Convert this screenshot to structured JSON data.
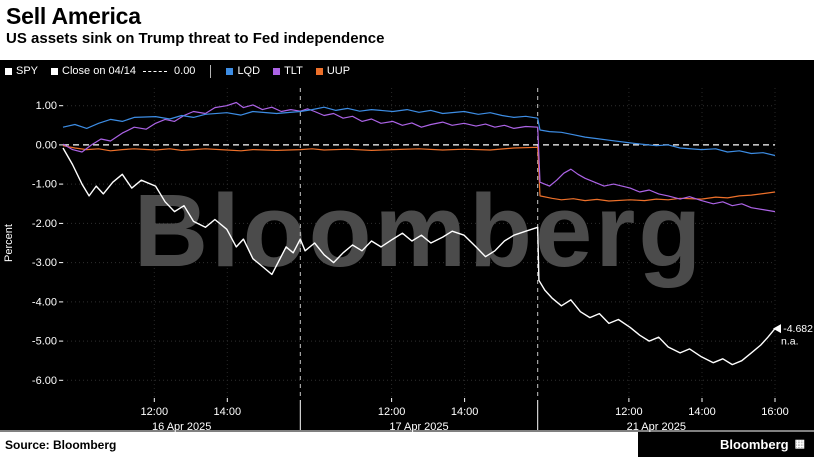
{
  "header": {
    "title": "Sell America",
    "subtitle": "US assets sink on Trump threat to Fed independence"
  },
  "legend": {
    "items": [
      {
        "label": "SPY",
        "color": "#FFFFFF"
      },
      {
        "label": "Close on 04/14",
        "color": "#FFFFFF",
        "dash_sample": true,
        "dash_value": "0.00"
      },
      {
        "label": "LQD",
        "color": "#3D8DE4",
        "divider_before": true
      },
      {
        "label": "TLT",
        "color": "#AC63E6"
      },
      {
        "label": "UUP",
        "color": "#ED702A"
      }
    ]
  },
  "chart_data": {
    "type": "line",
    "title": "Sell America",
    "subtitle": "US assets sink on Trump threat to Fed independence",
    "ylabel": "Percent",
    "ylim": [
      -6.45,
      1.45
    ],
    "x_domain": [
      0,
      3
    ],
    "yticks": [
      1.0,
      0.0,
      -1.0,
      -2.0,
      -3.0,
      -4.0,
      -5.0,
      -6.0
    ],
    "baseline": {
      "label": "Close on 04/14",
      "value": 0.0
    },
    "grid": true,
    "legend_position": "top",
    "watermark": "Bloomberg",
    "xticks": [
      {
        "t": 0.3846,
        "label": "12:00"
      },
      {
        "t": 0.6923,
        "label": "14:00"
      },
      {
        "t": 1.3846,
        "label": "12:00"
      },
      {
        "t": 1.6923,
        "label": "14:00"
      },
      {
        "t": 2.3846,
        "label": "12:00"
      },
      {
        "t": 2.6923,
        "label": "14:00"
      },
      {
        "t": 3.0,
        "label": "16:00"
      }
    ],
    "sessions": [
      {
        "label": "16 Apr 2025",
        "start": 0,
        "end": 1
      },
      {
        "label": "17 Apr 2025",
        "start": 1,
        "end": 2
      },
      {
        "label": "21 Apr 2025",
        "start": 2,
        "end": 3
      }
    ],
    "end_annotation": {
      "series": "SPY",
      "value_label": "-4.682",
      "sub_label": "n.a."
    },
    "series": [
      {
        "name": "SPY",
        "color": "#FFFFFF",
        "points": [
          [
            0,
            -0.08
          ],
          [
            0.04,
            -0.5
          ],
          [
            0.08,
            -1.0
          ],
          [
            0.11,
            -1.3
          ],
          [
            0.14,
            -1.05
          ],
          [
            0.17,
            -1.25
          ],
          [
            0.21,
            -0.95
          ],
          [
            0.25,
            -0.75
          ],
          [
            0.29,
            -1.1
          ],
          [
            0.33,
            -0.9
          ],
          [
            0.39,
            -1.05
          ],
          [
            0.43,
            -1.45
          ],
          [
            0.47,
            -1.7
          ],
          [
            0.51,
            -1.55
          ],
          [
            0.55,
            -1.95
          ],
          [
            0.6,
            -2.1
          ],
          [
            0.64,
            -1.9
          ],
          [
            0.69,
            -2.15
          ],
          [
            0.73,
            -2.6
          ],
          [
            0.76,
            -2.4
          ],
          [
            0.8,
            -2.9
          ],
          [
            0.84,
            -3.1
          ],
          [
            0.88,
            -3.3
          ],
          [
            0.91,
            -2.95
          ],
          [
            0.94,
            -2.6
          ],
          [
            0.97,
            -2.75
          ],
          [
            1,
            -2.4
          ],
          [
            1.02,
            -2.7
          ],
          [
            1.06,
            -2.5
          ],
          [
            1.1,
            -2.8
          ],
          [
            1.14,
            -3.0
          ],
          [
            1.18,
            -2.75
          ],
          [
            1.22,
            -2.55
          ],
          [
            1.26,
            -2.7
          ],
          [
            1.3,
            -2.45
          ],
          [
            1.34,
            -2.6
          ],
          [
            1.39,
            -2.4
          ],
          [
            1.43,
            -2.25
          ],
          [
            1.47,
            -2.45
          ],
          [
            1.51,
            -2.3
          ],
          [
            1.55,
            -2.5
          ],
          [
            1.6,
            -2.35
          ],
          [
            1.64,
            -2.2
          ],
          [
            1.69,
            -2.3
          ],
          [
            1.74,
            -2.6
          ],
          [
            1.78,
            -2.85
          ],
          [
            1.82,
            -2.7
          ],
          [
            1.86,
            -2.45
          ],
          [
            1.9,
            -2.3
          ],
          [
            1.95,
            -2.2
          ],
          [
            2,
            -2.1
          ],
          [
            2.005,
            -3.45
          ],
          [
            2.03,
            -3.7
          ],
          [
            2.06,
            -3.9
          ],
          [
            2.1,
            -4.1
          ],
          [
            2.14,
            -3.95
          ],
          [
            2.18,
            -4.25
          ],
          [
            2.22,
            -4.4
          ],
          [
            2.26,
            -4.3
          ],
          [
            2.3,
            -4.55
          ],
          [
            2.34,
            -4.45
          ],
          [
            2.39,
            -4.65
          ],
          [
            2.43,
            -4.85
          ],
          [
            2.47,
            -5.0
          ],
          [
            2.51,
            -4.9
          ],
          [
            2.55,
            -5.15
          ],
          [
            2.6,
            -5.3
          ],
          [
            2.64,
            -5.2
          ],
          [
            2.69,
            -5.4
          ],
          [
            2.74,
            -5.55
          ],
          [
            2.78,
            -5.45
          ],
          [
            2.82,
            -5.6
          ],
          [
            2.86,
            -5.5
          ],
          [
            2.9,
            -5.3
          ],
          [
            2.94,
            -5.1
          ],
          [
            2.97,
            -4.9
          ],
          [
            3,
            -4.682
          ]
        ]
      },
      {
        "name": "LQD",
        "color": "#3D8DE4",
        "points": [
          [
            0,
            0.45
          ],
          [
            0.05,
            0.52
          ],
          [
            0.1,
            0.42
          ],
          [
            0.15,
            0.55
          ],
          [
            0.2,
            0.65
          ],
          [
            0.25,
            0.6
          ],
          [
            0.3,
            0.7
          ],
          [
            0.39,
            0.72
          ],
          [
            0.45,
            0.66
          ],
          [
            0.5,
            0.75
          ],
          [
            0.55,
            0.7
          ],
          [
            0.6,
            0.78
          ],
          [
            0.69,
            0.82
          ],
          [
            0.75,
            0.76
          ],
          [
            0.8,
            0.85
          ],
          [
            0.9,
            0.8
          ],
          [
            1,
            0.85
          ],
          [
            1.05,
            0.9
          ],
          [
            1.1,
            0.96
          ],
          [
            1.15,
            0.88
          ],
          [
            1.2,
            0.93
          ],
          [
            1.25,
            0.86
          ],
          [
            1.3,
            0.9
          ],
          [
            1.39,
            0.85
          ],
          [
            1.45,
            0.9
          ],
          [
            1.5,
            0.83
          ],
          [
            1.55,
            0.88
          ],
          [
            1.6,
            0.8
          ],
          [
            1.69,
            0.85
          ],
          [
            1.75,
            0.78
          ],
          [
            1.8,
            0.82
          ],
          [
            1.85,
            0.75
          ],
          [
            1.9,
            0.7
          ],
          [
            1.95,
            0.73
          ],
          [
            2,
            0.68
          ],
          [
            2.01,
            0.38
          ],
          [
            2.05,
            0.34
          ],
          [
            2.1,
            0.32
          ],
          [
            2.15,
            0.26
          ],
          [
            2.2,
            0.2
          ],
          [
            2.25,
            0.16
          ],
          [
            2.3,
            0.12
          ],
          [
            2.39,
            0.05
          ],
          [
            2.45,
            0.01
          ],
          [
            2.5,
            -0.02
          ],
          [
            2.55,
            0.0
          ],
          [
            2.6,
            -0.08
          ],
          [
            2.69,
            -0.12
          ],
          [
            2.75,
            -0.1
          ],
          [
            2.8,
            -0.18
          ],
          [
            2.85,
            -0.15
          ],
          [
            2.9,
            -0.22
          ],
          [
            2.95,
            -0.2
          ],
          [
            3,
            -0.27
          ]
        ]
      },
      {
        "name": "TLT",
        "color": "#AC63E6",
        "points": [
          [
            0,
            0.02
          ],
          [
            0.04,
            -0.12
          ],
          [
            0.08,
            -0.18
          ],
          [
            0.12,
            0.0
          ],
          [
            0.16,
            0.15
          ],
          [
            0.2,
            0.1
          ],
          [
            0.25,
            0.3
          ],
          [
            0.3,
            0.45
          ],
          [
            0.35,
            0.4
          ],
          [
            0.39,
            0.55
          ],
          [
            0.43,
            0.65
          ],
          [
            0.47,
            0.6
          ],
          [
            0.51,
            0.75
          ],
          [
            0.55,
            0.85
          ],
          [
            0.6,
            0.8
          ],
          [
            0.64,
            0.95
          ],
          [
            0.69,
            1.0
          ],
          [
            0.73,
            1.08
          ],
          [
            0.76,
            0.95
          ],
          [
            0.8,
            1.02
          ],
          [
            0.84,
            0.9
          ],
          [
            0.88,
            0.96
          ],
          [
            0.92,
            0.85
          ],
          [
            0.96,
            0.9
          ],
          [
            1,
            0.86
          ],
          [
            1.03,
            0.92
          ],
          [
            1.06,
            0.85
          ],
          [
            1.1,
            0.75
          ],
          [
            1.14,
            0.8
          ],
          [
            1.18,
            0.68
          ],
          [
            1.22,
            0.73
          ],
          [
            1.26,
            0.6
          ],
          [
            1.3,
            0.66
          ],
          [
            1.34,
            0.55
          ],
          [
            1.39,
            0.6
          ],
          [
            1.43,
            0.5
          ],
          [
            1.47,
            0.56
          ],
          [
            1.51,
            0.45
          ],
          [
            1.55,
            0.52
          ],
          [
            1.6,
            0.58
          ],
          [
            1.64,
            0.5
          ],
          [
            1.69,
            0.55
          ],
          [
            1.74,
            0.48
          ],
          [
            1.78,
            0.53
          ],
          [
            1.82,
            0.45
          ],
          [
            1.86,
            0.5
          ],
          [
            1.9,
            0.42
          ],
          [
            1.95,
            0.47
          ],
          [
            2,
            0.45
          ],
          [
            2.01,
            -0.95
          ],
          [
            2.05,
            -1.05
          ],
          [
            2.08,
            -0.9
          ],
          [
            2.11,
            -0.72
          ],
          [
            2.14,
            -0.62
          ],
          [
            2.17,
            -0.75
          ],
          [
            2.2,
            -0.85
          ],
          [
            2.24,
            -0.95
          ],
          [
            2.28,
            -1.05
          ],
          [
            2.32,
            -1.0
          ],
          [
            2.39,
            -1.1
          ],
          [
            2.43,
            -1.2
          ],
          [
            2.47,
            -1.15
          ],
          [
            2.51,
            -1.25
          ],
          [
            2.55,
            -1.3
          ],
          [
            2.6,
            -1.38
          ],
          [
            2.64,
            -1.32
          ],
          [
            2.69,
            -1.42
          ],
          [
            2.74,
            -1.5
          ],
          [
            2.78,
            -1.45
          ],
          [
            2.82,
            -1.55
          ],
          [
            2.86,
            -1.5
          ],
          [
            2.9,
            -1.6
          ],
          [
            2.95,
            -1.65
          ],
          [
            3,
            -1.7
          ]
        ]
      },
      {
        "name": "UUP",
        "color": "#ED702A",
        "points": [
          [
            0,
            -0.02
          ],
          [
            0.05,
            -0.08
          ],
          [
            0.1,
            -0.12
          ],
          [
            0.15,
            -0.1
          ],
          [
            0.2,
            -0.15
          ],
          [
            0.25,
            -0.12
          ],
          [
            0.3,
            -0.1
          ],
          [
            0.39,
            -0.13
          ],
          [
            0.45,
            -0.1
          ],
          [
            0.5,
            -0.14
          ],
          [
            0.55,
            -0.12
          ],
          [
            0.6,
            -0.1
          ],
          [
            0.69,
            -0.13
          ],
          [
            0.75,
            -0.15
          ],
          [
            0.8,
            -0.12
          ],
          [
            0.9,
            -0.14
          ],
          [
            1,
            -0.12
          ],
          [
            1.05,
            -0.1
          ],
          [
            1.1,
            -0.13
          ],
          [
            1.2,
            -0.11
          ],
          [
            1.3,
            -0.14
          ],
          [
            1.39,
            -0.12
          ],
          [
            1.5,
            -0.1
          ],
          [
            1.6,
            -0.13
          ],
          [
            1.69,
            -0.11
          ],
          [
            1.8,
            -0.13
          ],
          [
            1.9,
            -0.08
          ],
          [
            2,
            -0.06
          ],
          [
            2.01,
            -1.3
          ],
          [
            2.06,
            -1.36
          ],
          [
            2.1,
            -1.4
          ],
          [
            2.15,
            -1.37
          ],
          [
            2.2,
            -1.42
          ],
          [
            2.25,
            -1.39
          ],
          [
            2.3,
            -1.43
          ],
          [
            2.39,
            -1.4
          ],
          [
            2.45,
            -1.42
          ],
          [
            2.5,
            -1.38
          ],
          [
            2.55,
            -1.4
          ],
          [
            2.6,
            -1.36
          ],
          [
            2.69,
            -1.38
          ],
          [
            2.75,
            -1.33
          ],
          [
            2.8,
            -1.35
          ],
          [
            2.85,
            -1.3
          ],
          [
            2.9,
            -1.28
          ],
          [
            2.95,
            -1.24
          ],
          [
            3,
            -1.2
          ]
        ]
      }
    ]
  },
  "footer": {
    "source": "Source: Bloomberg",
    "logo": "Bloomberg"
  }
}
